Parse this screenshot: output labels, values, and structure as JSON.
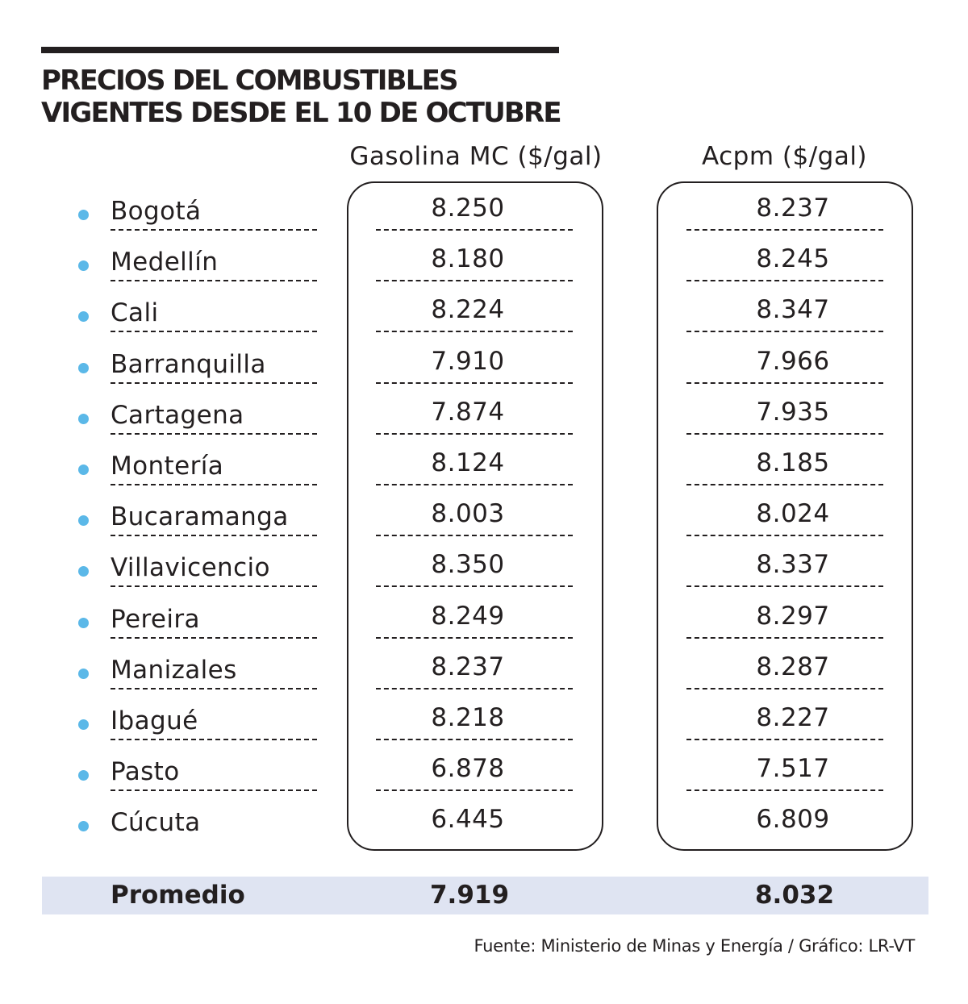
{
  "chart_data": {
    "type": "table",
    "title_lines": [
      "PRECIOS DEL COMBUSTIBLES",
      "VIGENTES DESDE EL 10 DE OCTUBRE"
    ],
    "columns": [
      "Gasolina MC ($/gal)",
      "Acpm ($/gal)"
    ],
    "rows": [
      {
        "city": "Bogotá",
        "gasolina": "8.250",
        "acpm": "8.237"
      },
      {
        "city": "Medellín",
        "gasolina": "8.180",
        "acpm": "8.245"
      },
      {
        "city": "Cali",
        "gasolina": "8.224",
        "acpm": "8.347"
      },
      {
        "city": "Barranquilla",
        "gasolina": "7.910",
        "acpm": "7.966"
      },
      {
        "city": "Cartagena",
        "gasolina": "7.874",
        "acpm": "7.935"
      },
      {
        "city": "Montería",
        "gasolina": "8.124",
        "acpm": "8.185"
      },
      {
        "city": "Bucaramanga",
        "gasolina": "8.003",
        "acpm": "8.024"
      },
      {
        "city": "Villavicencio",
        "gasolina": "8.350",
        "acpm": "8.337"
      },
      {
        "city": "Pereira",
        "gasolina": "8.249",
        "acpm": "8.297"
      },
      {
        "city": "Manizales",
        "gasolina": "8.237",
        "acpm": "8.287"
      },
      {
        "city": "Ibagué",
        "gasolina": "8.218",
        "acpm": "8.227"
      },
      {
        "city": "Pasto",
        "gasolina": "6.878",
        "acpm": "7.517"
      },
      {
        "city": "Cúcuta",
        "gasolina": "6.445",
        "acpm": "6.809"
      }
    ],
    "average": {
      "label": "Promedio",
      "gasolina": "7.919",
      "acpm": "8.032"
    },
    "source": "Fuente: Ministerio de Minas y Energía / Gráfico: LR-VT"
  },
  "colors": {
    "bullet": "#5bb8e8",
    "average_band": "#dfe4f2",
    "text": "#231f20"
  }
}
